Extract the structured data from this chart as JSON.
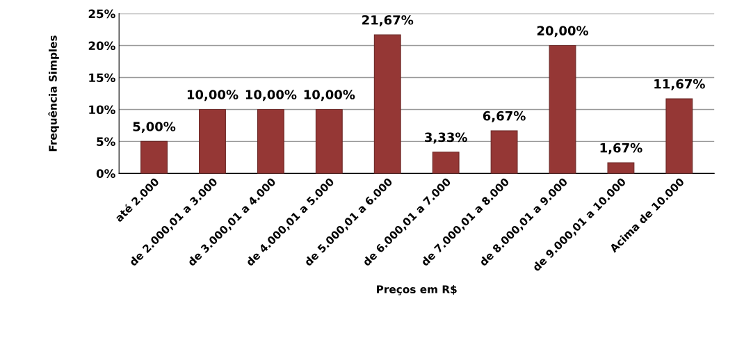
{
  "chart_data": {
    "type": "bar",
    "xlabel": "Preços em R$",
    "ylabel": "Frequência Simples",
    "categories": [
      "até 2.000",
      "de 2.000,01 a 3.000",
      "de 3.000,01 a 4.000",
      "de 4.000,01 a 5.000",
      "de 5.000,01 a 6.000",
      "de 6.000,01 a 7.000",
      "de 7.000,01 a 8.000",
      "de 8.000,01 a 9.000",
      "de 9.000,01 a 10.000",
      "Acima de 10.000"
    ],
    "values": [
      5,
      10,
      10,
      10,
      21.67,
      3.33,
      6.67,
      20,
      1.67,
      11.67
    ],
    "value_labels": [
      "5,00%",
      "10,00%",
      "10,00%",
      "10,00%",
      "21,67%",
      "3,33%",
      "6,67%",
      "20,00%",
      "1,67%",
      "11,67%"
    ],
    "color": "#953735",
    "ylim": [
      0,
      25
    ],
    "yticks": [
      {
        "value": 0,
        "label": "0%"
      },
      {
        "value": 5,
        "label": "5%"
      },
      {
        "value": 10,
        "label": "10%"
      },
      {
        "value": 15,
        "label": "15%"
      },
      {
        "value": 20,
        "label": "20%"
      },
      {
        "value": 25,
        "label": "25%"
      }
    ],
    "grid": "y"
  }
}
